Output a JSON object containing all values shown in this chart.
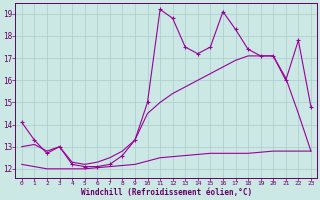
{
  "background_color": "#cce8e4",
  "grid_color": "#aacccc",
  "line_color": "#990099",
  "xlabel": "Windchill (Refroidissement éolien,°C)",
  "xlim": [
    -0.5,
    23.5
  ],
  "ylim": [
    11.6,
    19.5
  ],
  "yticks": [
    12,
    13,
    14,
    15,
    16,
    17,
    18,
    19
  ],
  "xticks": [
    0,
    1,
    2,
    3,
    4,
    5,
    6,
    7,
    8,
    9,
    10,
    11,
    12,
    13,
    14,
    15,
    16,
    17,
    18,
    19,
    20,
    21,
    22,
    23
  ],
  "series1_x": [
    0,
    1,
    2,
    3,
    4,
    5,
    6,
    7,
    8,
    9,
    10,
    11,
    12,
    13,
    14,
    15,
    16,
    17,
    18,
    19,
    20,
    21,
    22,
    23
  ],
  "series1_y": [
    14.1,
    13.3,
    12.7,
    13.0,
    12.2,
    12.1,
    12.1,
    12.2,
    12.6,
    13.3,
    15.0,
    19.2,
    18.8,
    17.5,
    17.2,
    17.5,
    19.1,
    18.3,
    17.4,
    17.1,
    17.1,
    16.0,
    17.8,
    14.8
  ],
  "series2_x": [
    0,
    1,
    2,
    3,
    4,
    5,
    6,
    7,
    8,
    9,
    10,
    11,
    12,
    13,
    14,
    15,
    16,
    17,
    18,
    19,
    20,
    21,
    22,
    23
  ],
  "series2_y": [
    12.2,
    12.1,
    12.0,
    12.0,
    12.0,
    12.0,
    12.05,
    12.1,
    12.15,
    12.2,
    12.35,
    12.5,
    12.55,
    12.6,
    12.65,
    12.7,
    12.7,
    12.7,
    12.7,
    12.75,
    12.8,
    12.8,
    12.8,
    12.8
  ],
  "series3_x": [
    0,
    1,
    2,
    3,
    4,
    5,
    6,
    7,
    8,
    9,
    10,
    11,
    12,
    13,
    14,
    15,
    16,
    17,
    18,
    19,
    20,
    21,
    22,
    23
  ],
  "series3_y": [
    13.0,
    13.1,
    12.8,
    13.0,
    12.3,
    12.2,
    12.3,
    12.5,
    12.8,
    13.3,
    14.5,
    15.0,
    15.4,
    15.7,
    16.0,
    16.3,
    16.6,
    16.9,
    17.1,
    17.1,
    17.1,
    16.1,
    14.5,
    12.8
  ]
}
